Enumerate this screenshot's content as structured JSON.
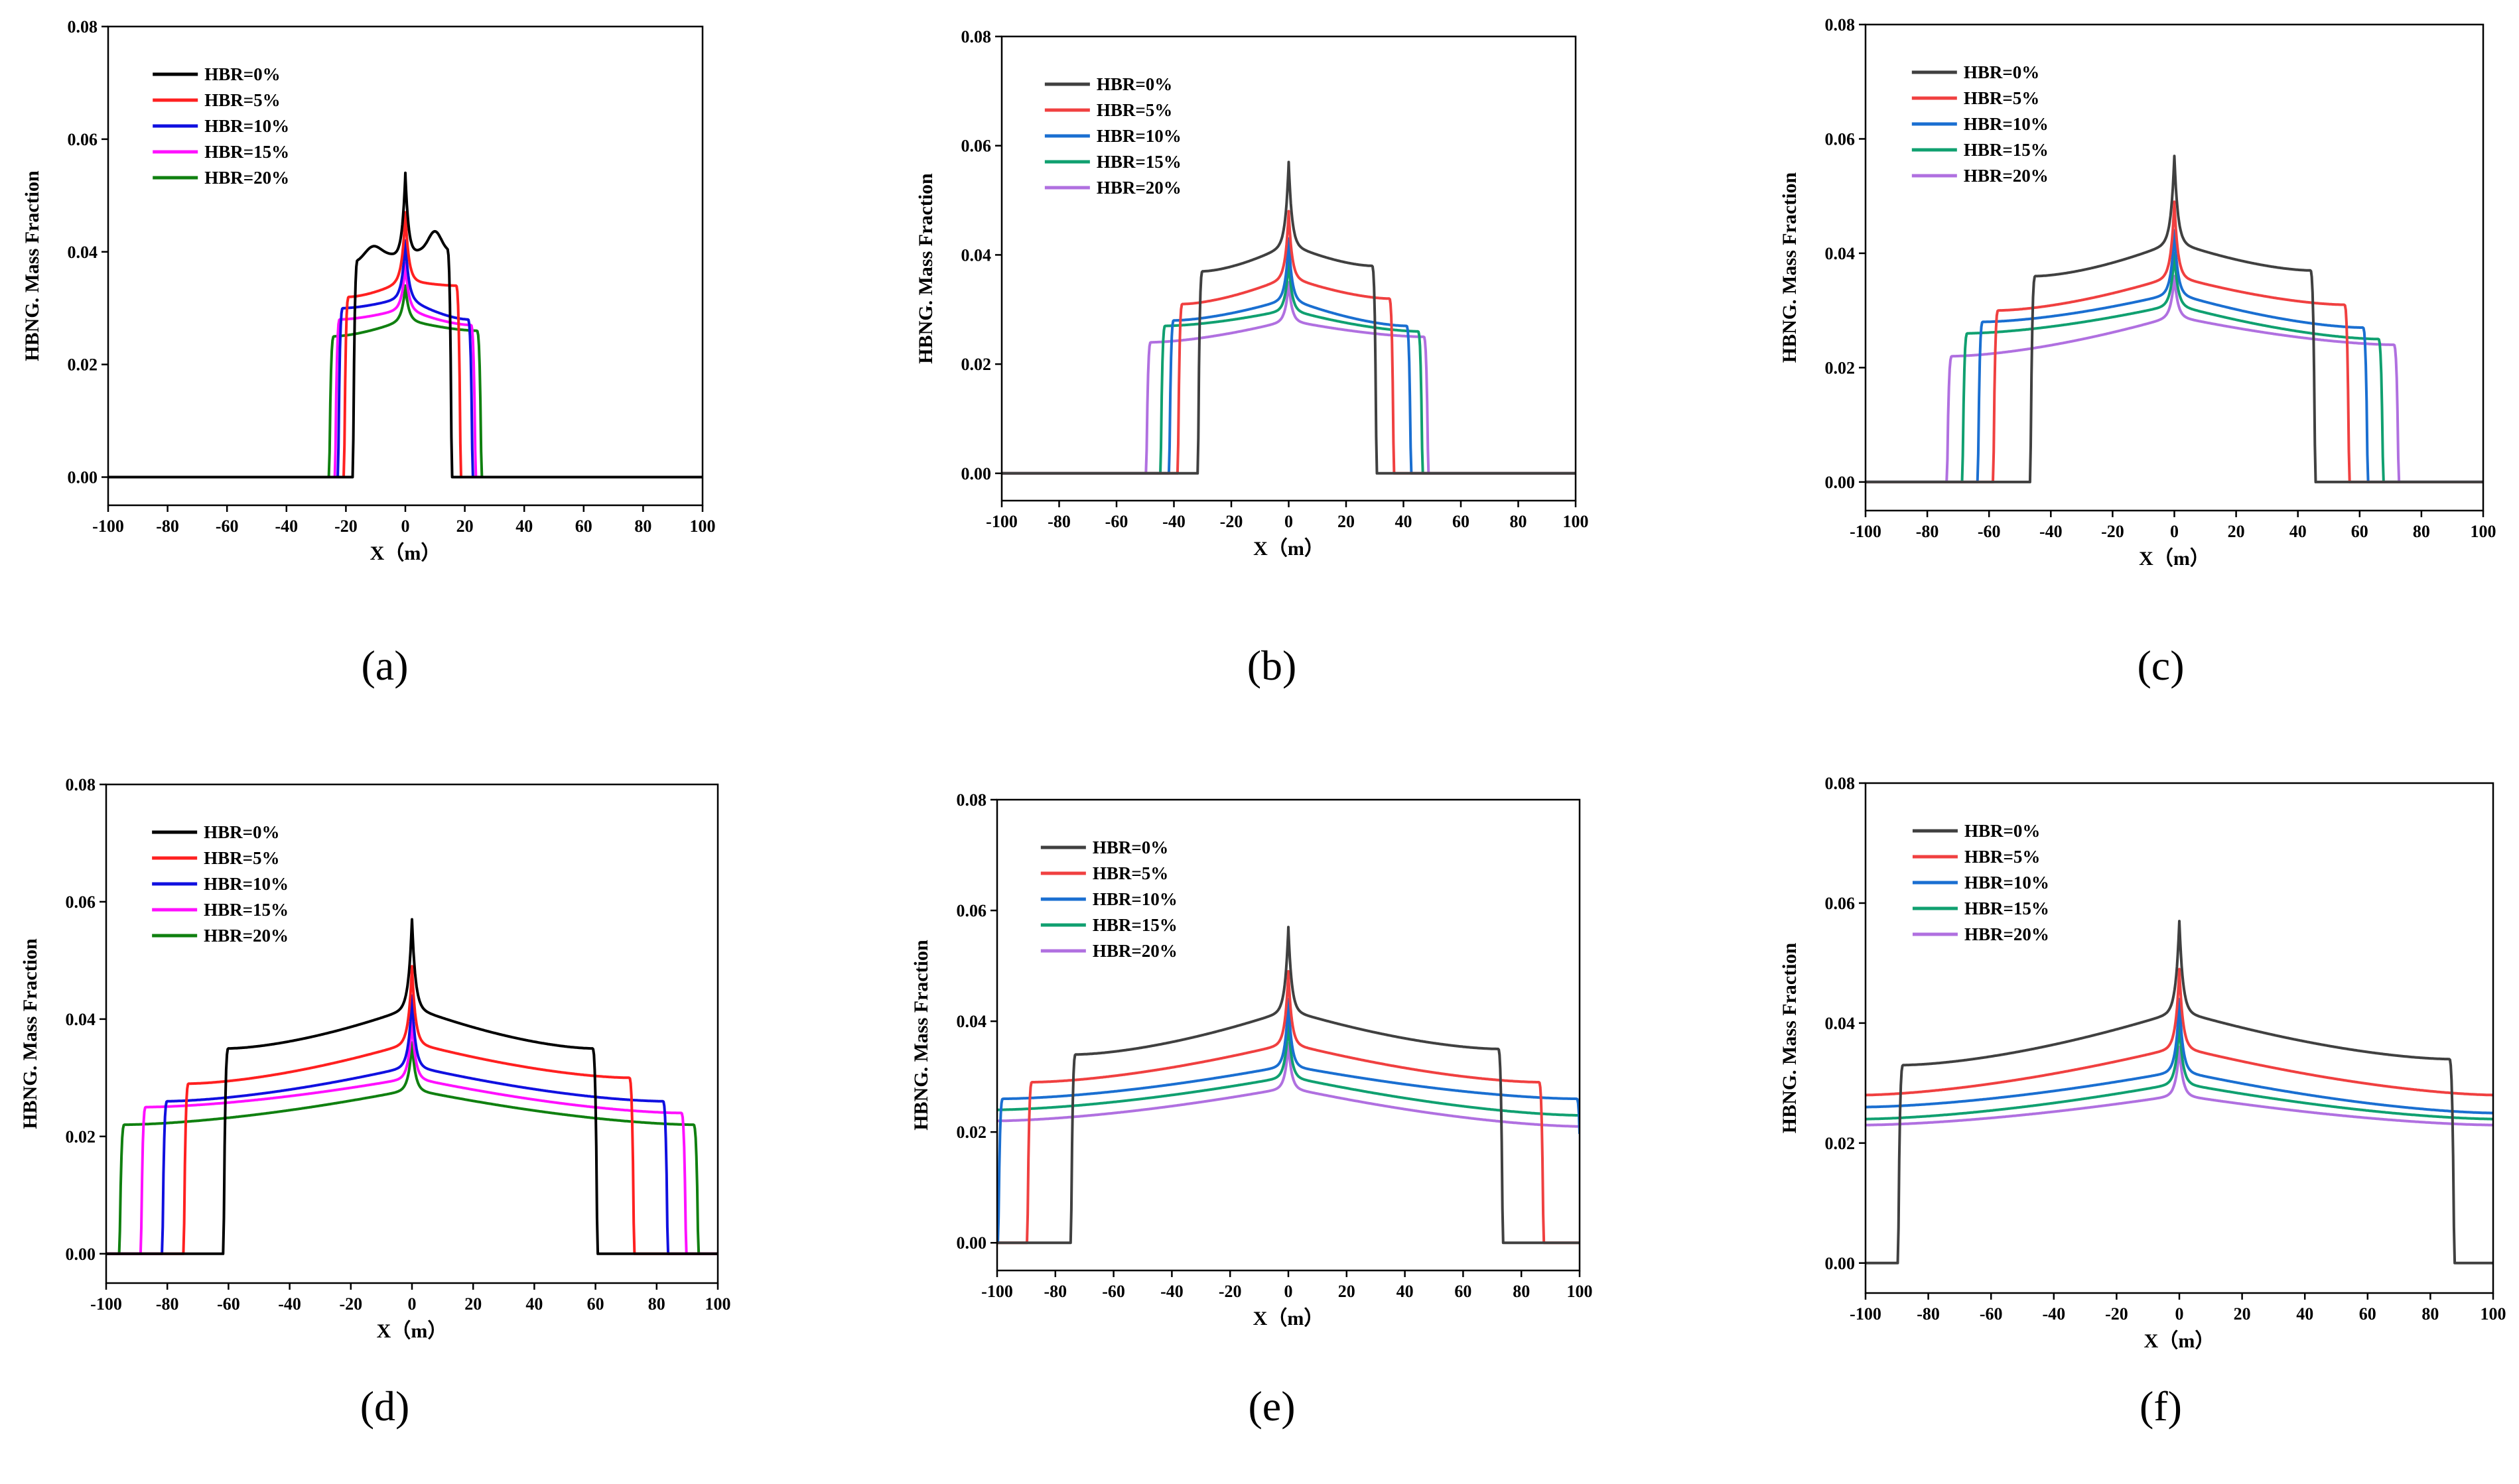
{
  "chart_data": [
    {
      "panel_label": "(a)",
      "type": "line",
      "xlabel": "X（m）",
      "ylabel": "HBNG. Mass Fraction",
      "xlim": [
        -100,
        100
      ],
      "ylim": [
        0,
        0.08
      ],
      "x_ticks": [
        "-100",
        "-80",
        "-60",
        "-40",
        "-20",
        "0",
        "20",
        "40",
        "60",
        "80",
        "100"
      ],
      "y_ticks": [
        "0.00",
        "0.02",
        "0.04",
        "0.06",
        "0.08"
      ],
      "legend_position": "top-left",
      "series": [
        {
          "name": "HBR=0%",
          "color": "#000000",
          "edge_left": -16,
          "edge_right": 14,
          "plateau_left": 0.038,
          "plateau_right": 0.04,
          "center": 0.041,
          "peak": 0.056,
          "shoulder": "hump"
        },
        {
          "name": "HBR=5%",
          "color": "#ff2020",
          "edge_left": -19,
          "edge_right": 17,
          "plateau_left": 0.032,
          "plateau_right": 0.034,
          "center": 0.035,
          "peak": 0.047,
          "shoulder": "flat"
        },
        {
          "name": "HBR=10%",
          "color": "#1010e0",
          "edge_left": -21,
          "edge_right": 21,
          "plateau_left": 0.03,
          "plateau_right": 0.028,
          "center": 0.032,
          "peak": 0.042,
          "shoulder": "flat"
        },
        {
          "name": "HBR=15%",
          "color": "#ff10ff",
          "edge_left": -22,
          "edge_right": 22,
          "plateau_left": 0.028,
          "plateau_right": 0.027,
          "center": 0.03,
          "peak": 0.038,
          "shoulder": "flat"
        },
        {
          "name": "HBR=20%",
          "color": "#108010",
          "edge_left": -24,
          "edge_right": 24,
          "plateau_left": 0.025,
          "plateau_right": 0.026,
          "center": 0.028,
          "peak": 0.034,
          "shoulder": "flat"
        }
      ]
    },
    {
      "panel_label": "(b)",
      "type": "line",
      "xlabel": "X（m）",
      "ylabel": "HBNG. Mass Fraction",
      "xlim": [
        -100,
        100
      ],
      "ylim": [
        0,
        0.08
      ],
      "x_ticks": [
        "-100",
        "-80",
        "-60",
        "-40",
        "-20",
        "0",
        "20",
        "40",
        "60",
        "80",
        "100"
      ],
      "y_ticks": [
        "0.00",
        "0.02",
        "0.04",
        "0.06",
        "0.08"
      ],
      "legend_position": "top-left",
      "series": [
        {
          "name": "HBR=0%",
          "color": "#404040",
          "edge_left": -30,
          "edge_right": 29,
          "plateau_left": 0.037,
          "plateau_right": 0.038,
          "center": 0.042,
          "peak": 0.057,
          "shoulder": "flat"
        },
        {
          "name": "HBR=5%",
          "color": "#f04040",
          "edge_left": -37,
          "edge_right": 35,
          "plateau_left": 0.031,
          "plateau_right": 0.032,
          "center": 0.036,
          "peak": 0.048,
          "shoulder": "flat"
        },
        {
          "name": "HBR=10%",
          "color": "#1a6fd1",
          "edge_left": -40,
          "edge_right": 41,
          "plateau_left": 0.028,
          "plateau_right": 0.027,
          "center": 0.032,
          "peak": 0.043,
          "shoulder": "flat"
        },
        {
          "name": "HBR=15%",
          "color": "#10a070",
          "edge_left": -43,
          "edge_right": 45,
          "plateau_left": 0.027,
          "plateau_right": 0.026,
          "center": 0.03,
          "peak": 0.039,
          "shoulder": "flat"
        },
        {
          "name": "HBR=20%",
          "color": "#b070e0",
          "edge_left": -48,
          "edge_right": 47,
          "plateau_left": 0.024,
          "plateau_right": 0.025,
          "center": 0.028,
          "peak": 0.035,
          "shoulder": "flat"
        }
      ]
    },
    {
      "panel_label": "(c)",
      "type": "line",
      "xlabel": "X（m）",
      "ylabel": "HBNG. Mass Fraction",
      "xlim": [
        -100,
        100
      ],
      "ylim": [
        0,
        0.08
      ],
      "x_ticks": [
        "-100",
        "-80",
        "-60",
        "-40",
        "-20",
        "0",
        "20",
        "40",
        "60",
        "80",
        "100"
      ],
      "y_ticks": [
        "0.00",
        "0.02",
        "0.04",
        "0.06",
        "0.08"
      ],
      "legend_position": "top-left",
      "series": [
        {
          "name": "HBR=0%",
          "color": "#404040",
          "edge_left": -45,
          "edge_right": 44,
          "plateau_left": 0.036,
          "plateau_right": 0.037,
          "center": 0.042,
          "peak": 0.057,
          "shoulder": "flat"
        },
        {
          "name": "HBR=5%",
          "color": "#f04040",
          "edge_left": -57,
          "edge_right": 55,
          "plateau_left": 0.03,
          "plateau_right": 0.031,
          "center": 0.036,
          "peak": 0.049,
          "shoulder": "flat"
        },
        {
          "name": "HBR=10%",
          "color": "#1a6fd1",
          "edge_left": -62,
          "edge_right": 61,
          "plateau_left": 0.028,
          "plateau_right": 0.027,
          "center": 0.033,
          "peak": 0.044,
          "shoulder": "flat"
        },
        {
          "name": "HBR=15%",
          "color": "#10a070",
          "edge_left": -67,
          "edge_right": 66,
          "plateau_left": 0.026,
          "plateau_right": 0.025,
          "center": 0.031,
          "peak": 0.04,
          "shoulder": "flat"
        },
        {
          "name": "HBR=20%",
          "color": "#b070e0",
          "edge_left": -72,
          "edge_right": 71,
          "plateau_left": 0.022,
          "plateau_right": 0.024,
          "center": 0.029,
          "peak": 0.036,
          "shoulder": "flat"
        }
      ]
    },
    {
      "panel_label": "(d)",
      "type": "line",
      "xlabel": "X（m）",
      "ylabel": "HBNG. Mass Fraction",
      "xlim": [
        -100,
        100
      ],
      "ylim": [
        0,
        0.08
      ],
      "x_ticks": [
        "-100",
        "-80",
        "-60",
        "-40",
        "-20",
        "0",
        "20",
        "40",
        "60",
        "80",
        "100"
      ],
      "y_ticks": [
        "0.00",
        "0.02",
        "0.04",
        "0.06",
        "0.08"
      ],
      "legend_position": "top-left",
      "series": [
        {
          "name": "HBR=0%",
          "color": "#000000",
          "edge_left": -60,
          "edge_right": 59,
          "plateau_left": 0.035,
          "plateau_right": 0.035,
          "center": 0.042,
          "peak": 0.057,
          "shoulder": "flat"
        },
        {
          "name": "HBR=5%",
          "color": "#ff2020",
          "edge_left": -73,
          "edge_right": 71,
          "plateau_left": 0.029,
          "plateau_right": 0.03,
          "center": 0.036,
          "peak": 0.049,
          "shoulder": "flat"
        },
        {
          "name": "HBR=10%",
          "color": "#1010e0",
          "edge_left": -80,
          "edge_right": 82,
          "plateau_left": 0.026,
          "plateau_right": 0.026,
          "center": 0.032,
          "peak": 0.044,
          "shoulder": "flat"
        },
        {
          "name": "HBR=15%",
          "color": "#ff10ff",
          "edge_left": -87,
          "edge_right": 88,
          "plateau_left": 0.025,
          "plateau_right": 0.024,
          "center": 0.03,
          "peak": 0.04,
          "shoulder": "flat"
        },
        {
          "name": "HBR=20%",
          "color": "#108010",
          "edge_left": -94,
          "edge_right": 92,
          "plateau_left": 0.022,
          "plateau_right": 0.022,
          "center": 0.028,
          "peak": 0.036,
          "shoulder": "flat"
        }
      ]
    },
    {
      "panel_label": "(e)",
      "type": "line",
      "xlabel": "X（m）",
      "ylabel": "HBNG. Mass Fraction",
      "xlim": [
        -100,
        100
      ],
      "ylim": [
        0,
        0.08
      ],
      "x_ticks": [
        "-100",
        "-80",
        "-60",
        "-40",
        "-20",
        "0",
        "20",
        "40",
        "60",
        "80",
        "100"
      ],
      "y_ticks": [
        "0.00",
        "0.02",
        "0.04",
        "0.06",
        "0.08"
      ],
      "legend_position": "top-left",
      "series": [
        {
          "name": "HBR=0%",
          "color": "#404040",
          "edge_left": -73,
          "edge_right": 72,
          "plateau_left": 0.034,
          "plateau_right": 0.035,
          "center": 0.042,
          "peak": 0.057,
          "shoulder": "flat"
        },
        {
          "name": "HBR=5%",
          "color": "#f04040",
          "edge_left": -88,
          "edge_right": 86,
          "plateau_left": 0.029,
          "plateau_right": 0.029,
          "center": 0.036,
          "peak": 0.049,
          "shoulder": "flat"
        },
        {
          "name": "HBR=10%",
          "color": "#1a6fd1",
          "edge_left": -98,
          "edge_right": 99,
          "plateau_left": 0.026,
          "plateau_right": 0.026,
          "center": 0.032,
          "peak": 0.044,
          "shoulder": "flat"
        },
        {
          "name": "HBR=15%",
          "color": "#10a070",
          "edge_left": -101,
          "edge_right": 101,
          "plateau_left": 0.024,
          "plateau_right": 0.023,
          "center": 0.03,
          "peak": 0.04,
          "shoulder": "flat"
        },
        {
          "name": "HBR=20%",
          "color": "#b070e0",
          "edge_left": -101,
          "edge_right": 101,
          "plateau_left": 0.022,
          "plateau_right": 0.021,
          "center": 0.028,
          "peak": 0.036,
          "shoulder": "flat"
        }
      ]
    },
    {
      "panel_label": "(f)",
      "type": "line",
      "xlabel": "X（m）",
      "ylabel": "HBNG. Mass Fraction",
      "xlim": [
        -100,
        100
      ],
      "ylim": [
        0,
        0.08
      ],
      "x_ticks": [
        "-100",
        "-80",
        "-60",
        "-40",
        "-20",
        "0",
        "20",
        "40",
        "60",
        "80",
        "100"
      ],
      "y_ticks": [
        "0.00",
        "0.02",
        "0.04",
        "0.06",
        "0.08"
      ],
      "legend_position": "top-left",
      "series": [
        {
          "name": "HBR=0%",
          "color": "#404040",
          "edge_left": -88,
          "edge_right": 86,
          "plateau_left": 0.033,
          "plateau_right": 0.034,
          "center": 0.042,
          "peak": 0.057,
          "shoulder": "flat"
        },
        {
          "name": "HBR=5%",
          "color": "#f04040",
          "edge_left": -101,
          "edge_right": 101,
          "plateau_left": 0.028,
          "plateau_right": 0.028,
          "center": 0.036,
          "peak": 0.049,
          "shoulder": "flat"
        },
        {
          "name": "HBR=10%",
          "color": "#1a6fd1",
          "edge_left": -101,
          "edge_right": 101,
          "plateau_left": 0.026,
          "plateau_right": 0.025,
          "center": 0.032,
          "peak": 0.044,
          "shoulder": "flat"
        },
        {
          "name": "HBR=15%",
          "color": "#10a070",
          "edge_left": -101,
          "edge_right": 101,
          "plateau_left": 0.024,
          "plateau_right": 0.024,
          "center": 0.03,
          "peak": 0.04,
          "shoulder": "flat"
        },
        {
          "name": "HBR=20%",
          "color": "#b070e0",
          "edge_left": -101,
          "edge_right": 101,
          "plateau_left": 0.023,
          "plateau_right": 0.023,
          "center": 0.028,
          "peak": 0.036,
          "shoulder": "flat"
        }
      ]
    }
  ]
}
